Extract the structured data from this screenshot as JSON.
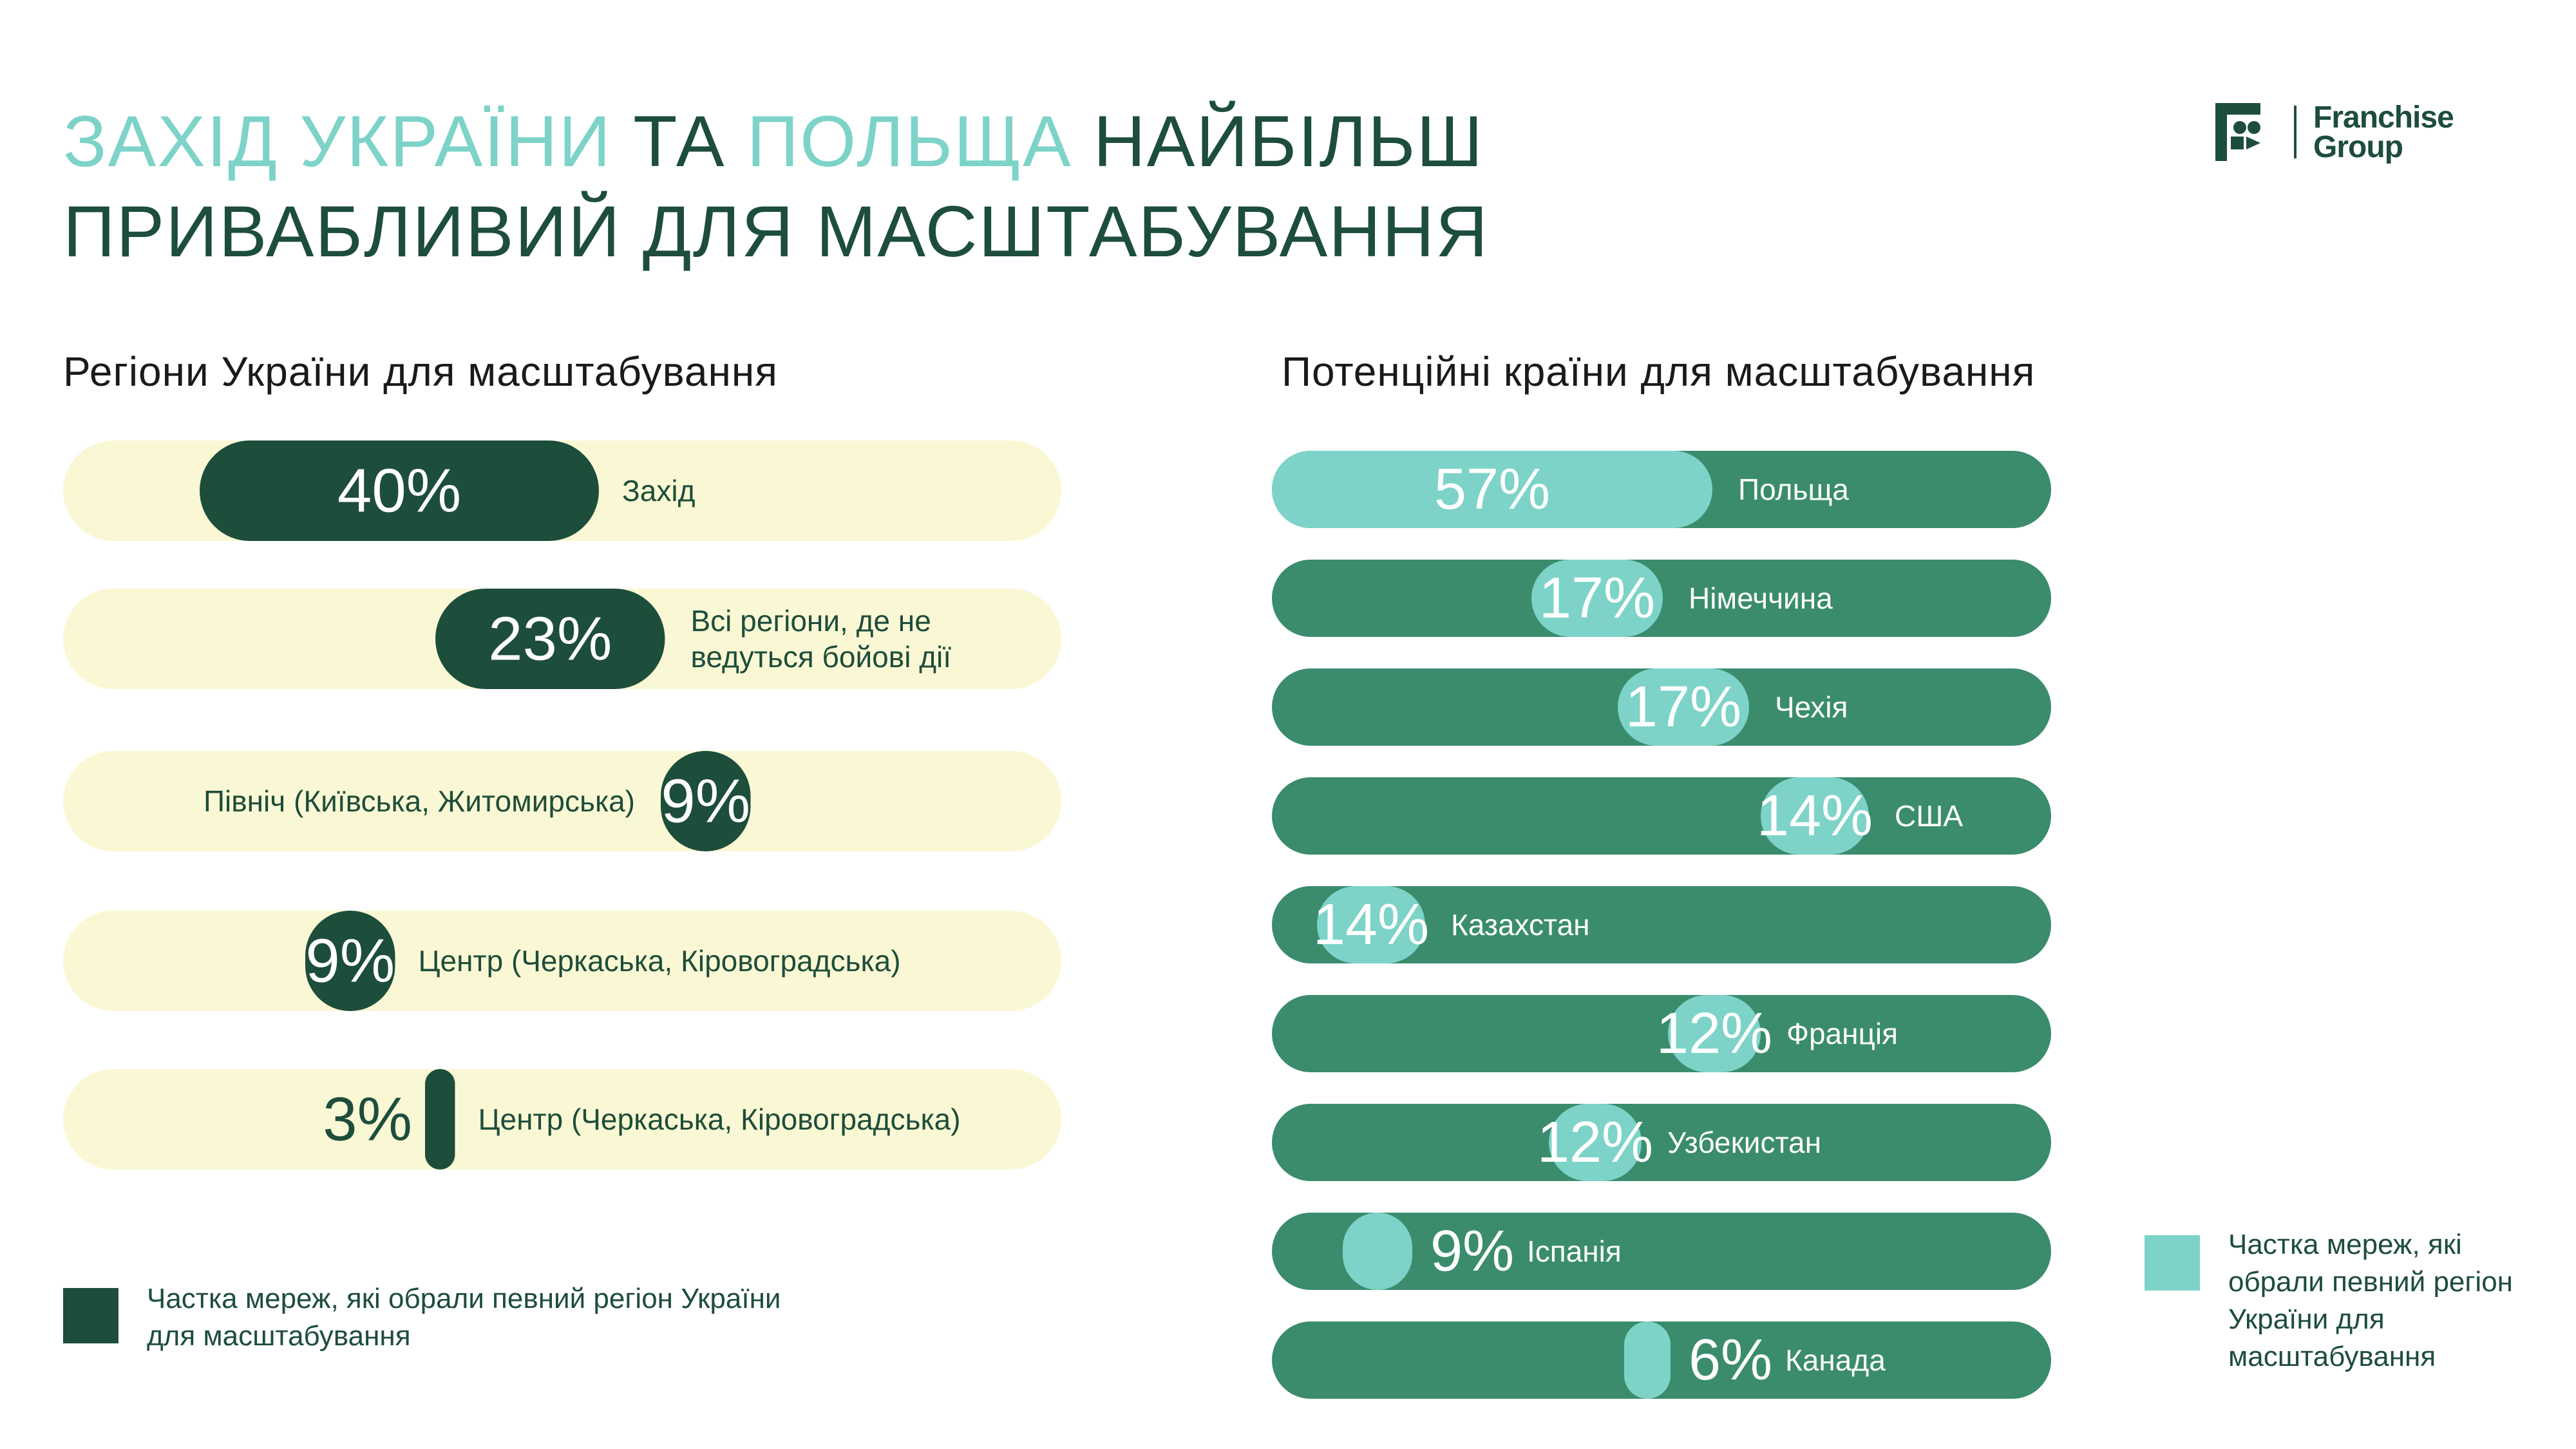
{
  "title": {
    "part1": "ЗАХІД УКРАЇНИ",
    "part2": " ТА ",
    "part3": "ПОЛЬЩА",
    "part4": " НАЙБІЛЬШ",
    "line2": "ПРИВАБЛИВИЙ ДЛЯ МАСШТАБУВАННЯ"
  },
  "logo": {
    "text_line1": "Franchise",
    "text_line2": "Group",
    "icon": "franchise-group-logo-icon"
  },
  "colors": {
    "dark_green": "#1d4d3b",
    "mid_green": "#3a8c6c",
    "mint": "#7dd3c8",
    "cream": "#faf8d4"
  },
  "chart_data": [
    {
      "type": "bar",
      "title": "Регіони України для масштабування",
      "categories": [
        "Захід",
        "Всі регіони, де не ведуться бойові дії",
        "Північ (Київська, Житомирська)",
        "Центр (Черкаська, Кіровоградська)",
        "Центр (Черкаська, Кіровоградська)"
      ],
      "value_labels": [
        "40%",
        "23%",
        "9%",
        "9%",
        "3%"
      ],
      "values": [
        40,
        23,
        9,
        9,
        3
      ],
      "legend": "Частка мереж, які обрали певний регіон України для масштабування"
    },
    {
      "type": "bar",
      "title": "Потенційні країни для масштабування",
      "categories": [
        "Польща",
        "Німеччина",
        "Чехія",
        "США",
        "Казахстан",
        "Франція",
        "Узбекистан",
        "Іспанія",
        "Канада"
      ],
      "value_labels": [
        "57%",
        "17%",
        "17%",
        "14%",
        "14%",
        "12%",
        "12%",
        "9%",
        "6%"
      ],
      "values": [
        57,
        17,
        17,
        14,
        14,
        12,
        12,
        9,
        6
      ],
      "legend": "Частка мереж, які обрали певний регіон України для масштабування"
    }
  ]
}
